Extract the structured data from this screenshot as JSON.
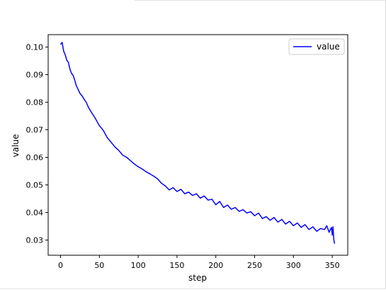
{
  "chart_data": {
    "type": "line",
    "title": "",
    "xlabel": "step",
    "ylabel": "value",
    "xlim": [
      -16,
      370
    ],
    "ylim": [
      0.0245,
      0.1045
    ],
    "xticks": [
      0,
      50,
      100,
      150,
      200,
      250,
      300,
      350
    ],
    "xtick_labels": [
      "0",
      "50",
      "100",
      "150",
      "200",
      "250",
      "300",
      "350"
    ],
    "yticks": [
      0.03,
      0.04,
      0.05,
      0.06,
      0.07,
      0.08,
      0.09,
      0.1
    ],
    "ytick_labels": [
      "0.03",
      "0.04",
      "0.05",
      "0.06",
      "0.07",
      "0.08",
      "0.09",
      "0.10"
    ],
    "grid": false,
    "legend": {
      "position": "top-right",
      "entries": [
        "value"
      ]
    },
    "series": [
      {
        "name": "value",
        "color": "#0000ff",
        "x": [
          0,
          2,
          4,
          6,
          8,
          10,
          12,
          14,
          16,
          18,
          20,
          22,
          25,
          28,
          30,
          33,
          36,
          40,
          44,
          48,
          50,
          55,
          60,
          65,
          70,
          75,
          80,
          85,
          90,
          95,
          100,
          105,
          110,
          115,
          120,
          125,
          130,
          135,
          140,
          145,
          150,
          155,
          160,
          165,
          170,
          175,
          180,
          185,
          190,
          195,
          200,
          205,
          210,
          215,
          220,
          225,
          230,
          235,
          240,
          245,
          250,
          255,
          260,
          265,
          270,
          275,
          280,
          285,
          290,
          295,
          300,
          305,
          310,
          315,
          320,
          325,
          330,
          335,
          340,
          343,
          346,
          349,
          350,
          351,
          352,
          353
        ],
        "values": [
          0.1009,
          0.1017,
          0.0985,
          0.0972,
          0.0952,
          0.0945,
          0.092,
          0.0905,
          0.0898,
          0.0882,
          0.0862,
          0.085,
          0.0832,
          0.0822,
          0.0812,
          0.08,
          0.0781,
          0.0762,
          0.0745,
          0.0725,
          0.0715,
          0.0698,
          0.0672,
          0.0655,
          0.0638,
          0.0625,
          0.0608,
          0.06,
          0.0588,
          0.0576,
          0.0566,
          0.0558,
          0.0548,
          0.054,
          0.0532,
          0.0522,
          0.0506,
          0.0496,
          0.0482,
          0.049,
          0.0476,
          0.0484,
          0.0468,
          0.0474,
          0.0462,
          0.0468,
          0.0452,
          0.046,
          0.0445,
          0.0448,
          0.0428,
          0.044,
          0.0418,
          0.0427,
          0.0412,
          0.0418,
          0.0404,
          0.041,
          0.0398,
          0.0403,
          0.0388,
          0.0398,
          0.0378,
          0.0385,
          0.0372,
          0.0382,
          0.0365,
          0.0375,
          0.0358,
          0.0368,
          0.0352,
          0.0362,
          0.0346,
          0.0356,
          0.0338,
          0.0348,
          0.0332,
          0.0342,
          0.0338,
          0.0352,
          0.0328,
          0.0346,
          0.0318,
          0.0348,
          0.0302,
          0.0287
        ]
      }
    ]
  }
}
